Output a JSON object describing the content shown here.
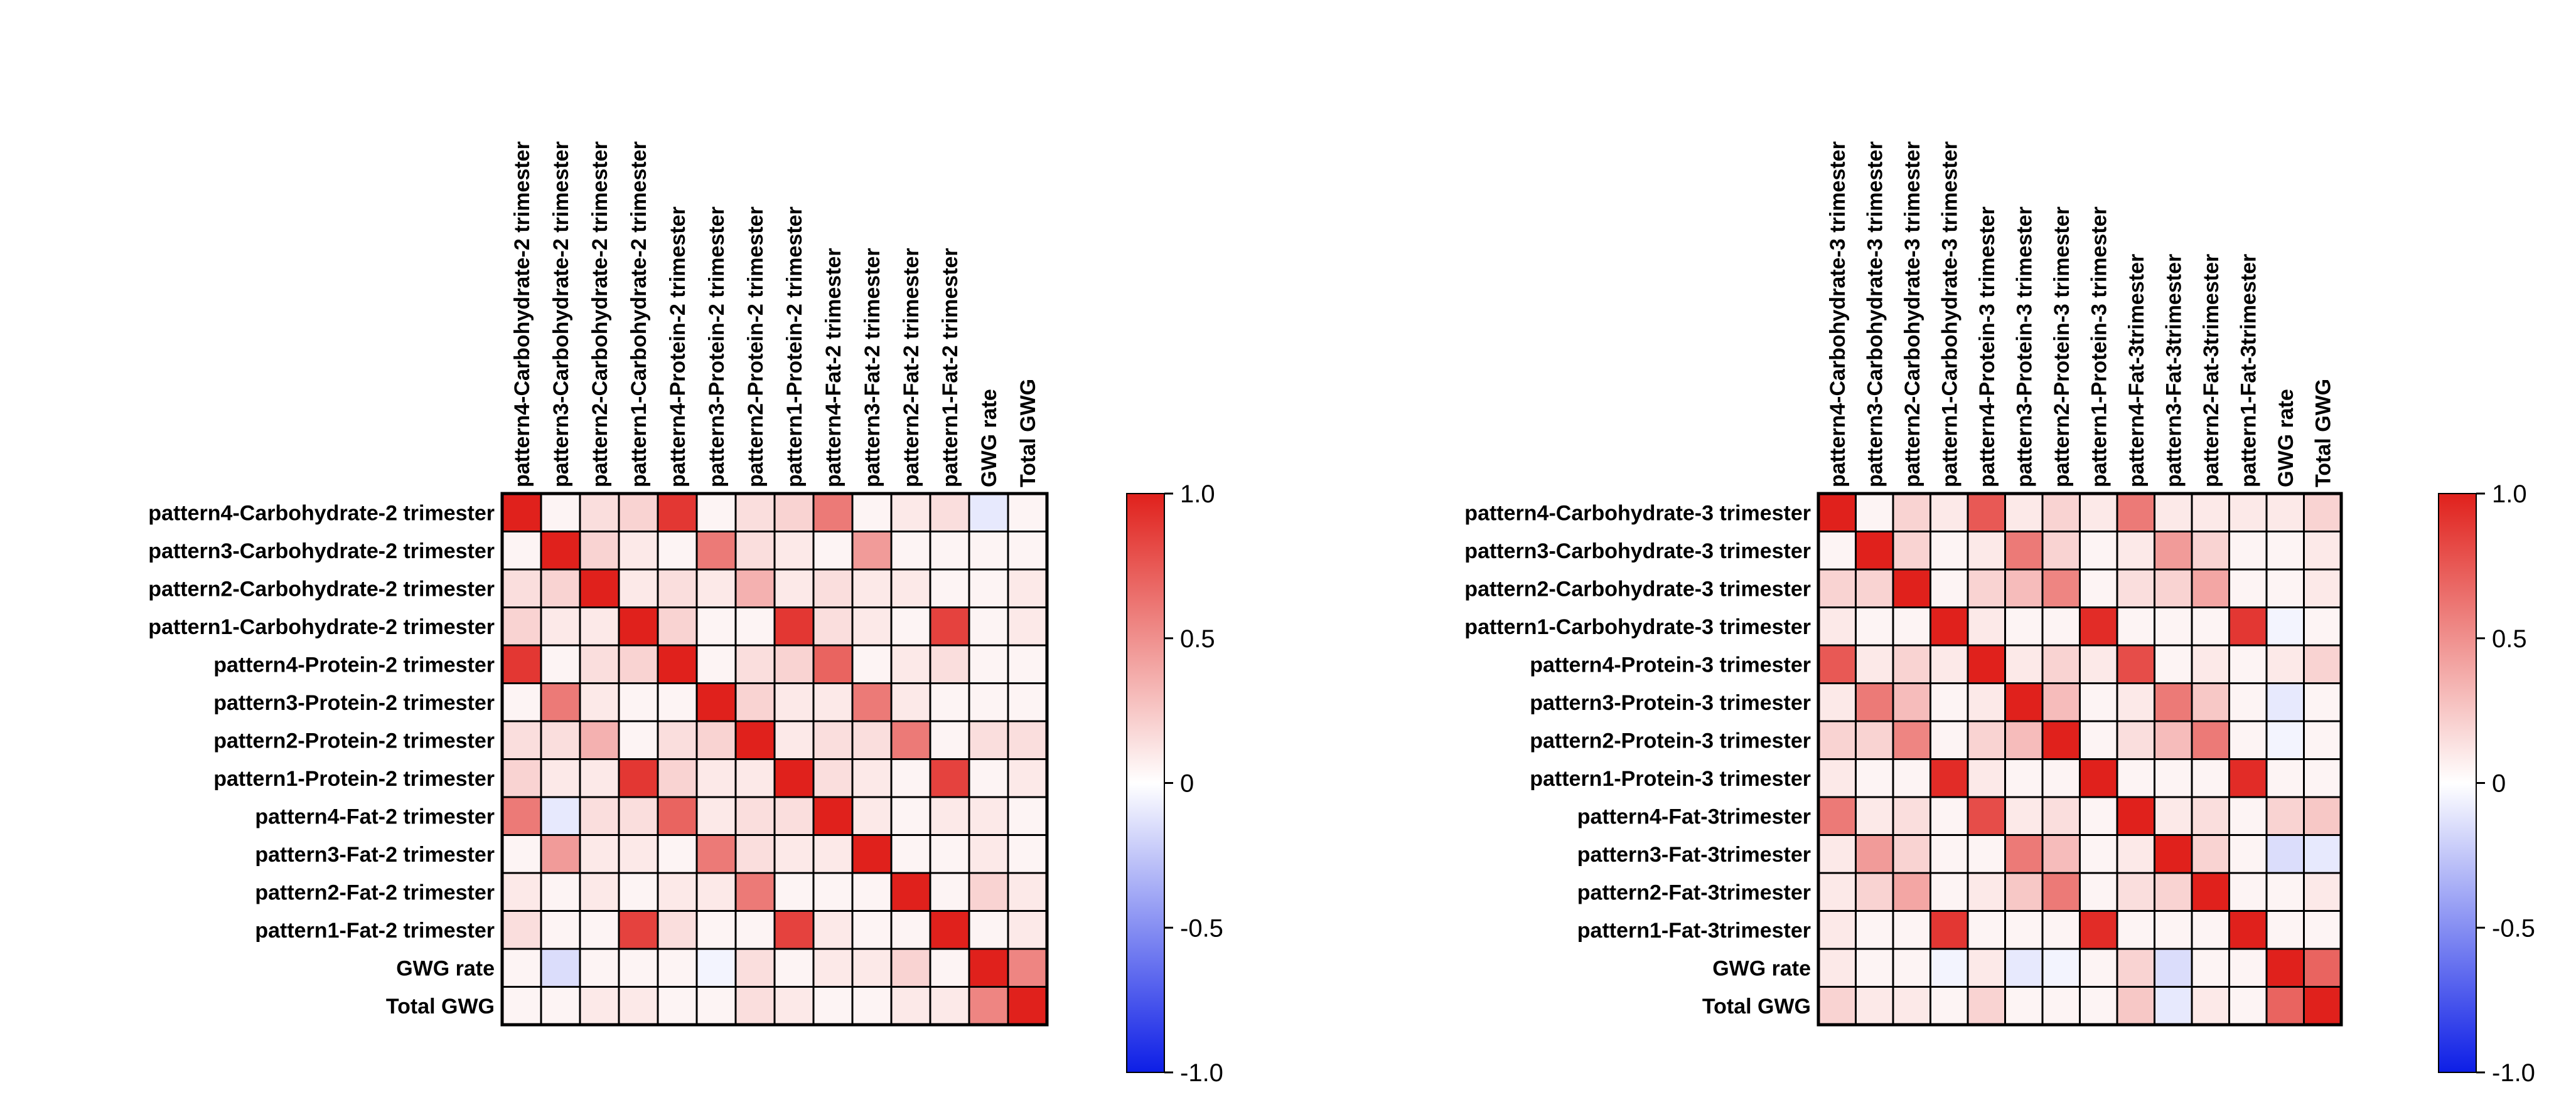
{
  "colors": {
    "neg": "#0d1ee6",
    "mid": "#ffffff",
    "pos": "#e0211c"
  },
  "chart_data": [
    {
      "type": "heatmap",
      "title": "",
      "labels": [
        "pattern4-Carbohydrate-2 trimester",
        "pattern3-Carbohydrate-2 trimester",
        "pattern2-Carbohydrate-2 trimester",
        "pattern1-Carbohydrate-2 trimester",
        "pattern4-Protein-2 trimester",
        "pattern3-Protein-2 trimester",
        "pattern2-Protein-2 trimester",
        "pattern1-Protein-2 trimester",
        "pattern4-Fat-2 trimester",
        "pattern3-Fat-2 trimester",
        "pattern2-Fat-2 trimester",
        "pattern1-Fat-2 trimester",
        "GWG rate",
        "Total GWG"
      ],
      "values": [
        [
          1.0,
          0.05,
          0.15,
          0.2,
          0.9,
          0.05,
          0.15,
          0.2,
          0.6,
          0.05,
          0.1,
          0.15,
          -0.1,
          0.05
        ],
        [
          0.05,
          1.0,
          0.2,
          0.1,
          0.05,
          0.6,
          0.15,
          0.1,
          0.05,
          0.45,
          0.05,
          0.05,
          0.05,
          0.05
        ],
        [
          0.15,
          0.2,
          1.0,
          0.1,
          0.15,
          0.1,
          0.35,
          0.1,
          0.15,
          0.1,
          0.1,
          0.05,
          0.05,
          0.1
        ],
        [
          0.2,
          0.1,
          0.1,
          1.0,
          0.2,
          0.05,
          0.05,
          0.9,
          0.15,
          0.1,
          0.05,
          0.85,
          0.05,
          0.1
        ],
        [
          0.9,
          0.05,
          0.15,
          0.2,
          1.0,
          0.05,
          0.15,
          0.2,
          0.7,
          0.05,
          0.1,
          0.15,
          0.05,
          0.05
        ],
        [
          0.05,
          0.6,
          0.1,
          0.05,
          0.05,
          1.0,
          0.2,
          0.1,
          0.1,
          0.6,
          0.1,
          0.05,
          0.05,
          0.05
        ],
        [
          0.15,
          0.15,
          0.35,
          0.05,
          0.15,
          0.2,
          1.0,
          0.1,
          0.15,
          0.15,
          0.6,
          0.05,
          0.15,
          0.15
        ],
        [
          0.2,
          0.1,
          0.1,
          0.9,
          0.2,
          0.1,
          0.1,
          1.0,
          0.15,
          0.1,
          0.05,
          0.85,
          0.05,
          0.1
        ],
        [
          0.6,
          -0.1,
          0.15,
          0.15,
          0.7,
          0.1,
          0.15,
          0.15,
          1.0,
          0.1,
          0.05,
          0.1,
          0.1,
          0.05
        ],
        [
          0.05,
          0.45,
          0.1,
          0.1,
          0.05,
          0.6,
          0.15,
          0.1,
          0.1,
          1.0,
          0.05,
          0.05,
          0.1,
          0.05
        ],
        [
          0.1,
          0.05,
          0.1,
          0.05,
          0.1,
          0.1,
          0.6,
          0.05,
          0.05,
          0.05,
          1.0,
          0.05,
          0.2,
          0.1
        ],
        [
          0.15,
          0.05,
          0.05,
          0.85,
          0.15,
          0.05,
          0.05,
          0.85,
          0.1,
          0.05,
          0.05,
          1.0,
          0.05,
          0.1
        ],
        [
          0.05,
          -0.15,
          0.05,
          0.05,
          0.05,
          -0.05,
          0.15,
          0.05,
          0.1,
          0.1,
          0.2,
          0.05,
          1.0,
          0.55
        ],
        [
          0.05,
          0.05,
          0.1,
          0.1,
          0.05,
          0.05,
          0.15,
          0.1,
          0.05,
          0.05,
          0.1,
          0.1,
          0.55,
          1.0
        ]
      ],
      "zlim": [
        -1.0,
        1.0
      ],
      "colorbar_ticks": [
        "1.0",
        "0.5",
        "0",
        "-0.5",
        "-1.0"
      ]
    },
    {
      "type": "heatmap",
      "title": "",
      "labels": [
        "pattern4-Carbohydrate-3 trimester",
        "pattern3-Carbohydrate-3 trimester",
        "pattern2-Carbohydrate-3 trimester",
        "pattern1-Carbohydrate-3 trimester",
        "pattern4-Protein-3 trimester",
        "pattern3-Protein-3 trimester",
        "pattern2-Protein-3 trimester",
        "pattern1-Protein-3 trimester",
        "pattern4-Fat-3trimester",
        "pattern3-Fat-3trimester",
        "pattern2-Fat-3trimester",
        "pattern1-Fat-3trimester",
        "GWG rate",
        "Total GWG"
      ],
      "values": [
        [
          1.0,
          0.05,
          0.2,
          0.1,
          0.75,
          0.1,
          0.2,
          0.1,
          0.6,
          0.1,
          0.1,
          0.1,
          0.1,
          0.2
        ],
        [
          0.05,
          1.0,
          0.2,
          0.05,
          0.1,
          0.6,
          0.2,
          0.05,
          0.1,
          0.45,
          0.2,
          0.05,
          0.05,
          0.1
        ],
        [
          0.2,
          0.2,
          1.0,
          0.05,
          0.2,
          0.3,
          0.55,
          0.05,
          0.15,
          0.2,
          0.4,
          0.05,
          0.05,
          0.1
        ],
        [
          0.1,
          0.05,
          0.05,
          1.0,
          0.1,
          0.05,
          0.05,
          0.95,
          0.05,
          0.05,
          0.05,
          0.9,
          -0.05,
          0.05
        ],
        [
          0.75,
          0.1,
          0.2,
          0.1,
          1.0,
          0.1,
          0.2,
          0.1,
          0.8,
          0.05,
          0.1,
          0.05,
          0.1,
          0.2
        ],
        [
          0.1,
          0.6,
          0.3,
          0.05,
          0.1,
          1.0,
          0.3,
          0.05,
          0.1,
          0.6,
          0.25,
          0.05,
          -0.1,
          0.05
        ],
        [
          0.2,
          0.2,
          0.55,
          0.05,
          0.2,
          0.3,
          1.0,
          0.05,
          0.15,
          0.3,
          0.6,
          0.05,
          -0.05,
          0.05
        ],
        [
          0.1,
          0.05,
          0.05,
          0.95,
          0.1,
          0.05,
          0.05,
          1.0,
          0.05,
          0.05,
          0.05,
          0.95,
          0.05,
          0.05
        ],
        [
          0.6,
          0.1,
          0.15,
          0.05,
          0.8,
          0.1,
          0.15,
          0.05,
          1.0,
          0.1,
          0.15,
          0.05,
          0.2,
          0.25
        ],
        [
          0.1,
          0.45,
          0.2,
          0.05,
          0.05,
          0.6,
          0.3,
          0.05,
          0.1,
          1.0,
          0.2,
          0.05,
          -0.15,
          -0.1
        ],
        [
          0.1,
          0.2,
          0.4,
          0.05,
          0.1,
          0.25,
          0.6,
          0.05,
          0.15,
          0.2,
          1.0,
          0.05,
          0.05,
          0.1
        ],
        [
          0.1,
          0.05,
          0.05,
          0.9,
          0.05,
          0.05,
          0.05,
          0.95,
          0.05,
          0.05,
          0.05,
          1.0,
          0.05,
          0.05
        ],
        [
          0.1,
          0.05,
          0.05,
          -0.05,
          0.1,
          -0.1,
          -0.05,
          0.05,
          0.2,
          -0.15,
          0.05,
          0.05,
          1.0,
          0.7
        ],
        [
          0.2,
          0.1,
          0.1,
          0.05,
          0.2,
          0.05,
          0.05,
          0.05,
          0.25,
          -0.1,
          0.1,
          0.05,
          0.7,
          1.0
        ]
      ],
      "zlim": [
        -1.0,
        1.0
      ],
      "colorbar_ticks": [
        "1.0",
        "0.5",
        "0",
        "-0.5",
        "-1.0"
      ]
    }
  ]
}
